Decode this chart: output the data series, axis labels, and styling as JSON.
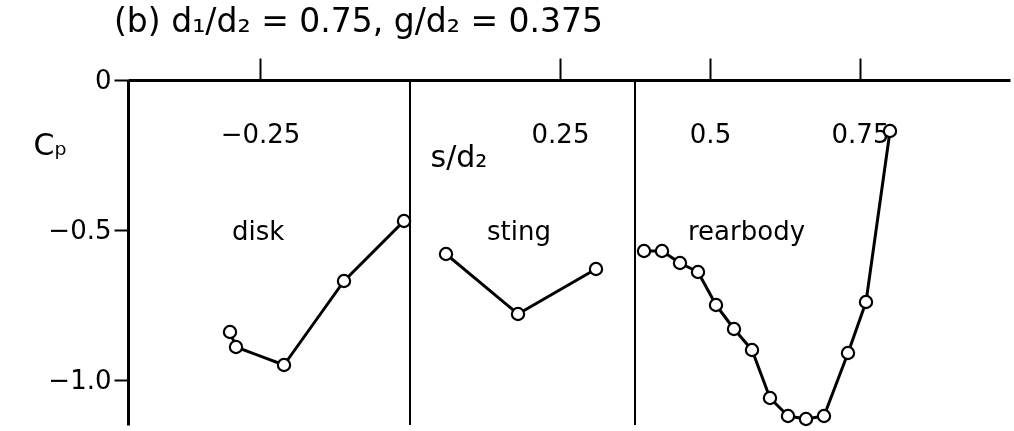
{
  "chart_data": {
    "type": "line",
    "title": "(b) d₁/d₂ = 0.75, g/d₂ = 0.375",
    "xlabel": "s/d₂",
    "ylabel": "Cₚ",
    "xlim": [
      -0.47,
      1.0
    ],
    "ylim": [
      -1.15,
      0
    ],
    "xticks": [
      {
        "value": -0.25,
        "label": "−0.25"
      },
      0.25,
      0.5,
      0.75
    ],
    "yticks": [
      0,
      {
        "value": -0.5,
        "label": "−0.5"
      },
      {
        "value": -1.0,
        "label": "−1.0"
      }
    ],
    "marker": "circle",
    "line_style": "solid",
    "grid": false,
    "series": [
      {
        "color": "#000000",
        "x": [
          -0.3,
          -0.29,
          -0.21,
          -0.11,
          -0.01
        ],
        "values": [
          -0.84,
          -0.89,
          -0.95,
          -0.67,
          -0.47
        ]
      },
      {
        "color": "#000000",
        "x": [
          0.06,
          0.18,
          0.31
        ],
        "values": [
          -0.58,
          -0.78,
          -0.63
        ]
      },
      {
        "color": "#000000",
        "x": [
          0.39,
          0.42,
          0.45,
          0.48,
          0.51,
          0.54,
          0.57,
          0.6,
          0.63,
          0.66,
          0.69,
          0.73,
          0.76,
          0.8
        ],
        "values": [
          -0.57,
          -0.57,
          -0.61,
          -0.64,
          -0.75,
          -0.83,
          -0.9,
          -1.06,
          -1.12,
          -1.13,
          -1.12,
          -0.91,
          -0.74,
          -0.17
        ]
      }
    ],
    "ref_lines": [
      {
        "axis": "x",
        "value": 0,
        "color": "#000000"
      },
      {
        "axis": "x",
        "value": 0.375,
        "color": "#000000"
      }
    ],
    "annotations": [
      "disk",
      "sting",
      "rearbody"
    ]
  }
}
